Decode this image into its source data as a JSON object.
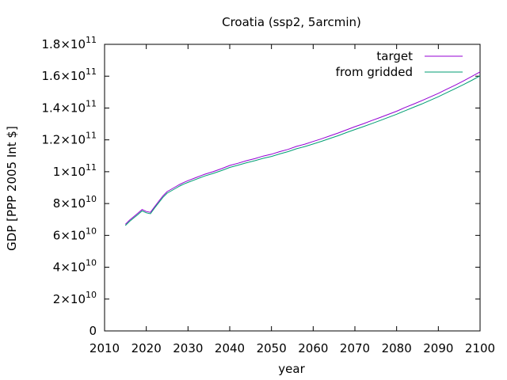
{
  "chart_data": {
    "type": "line",
    "title": "Croatia (ssp2, 5arcmin)",
    "xlabel": "year",
    "ylabel": "GDP [PPP 2005 Int $]",
    "xlim": [
      2010,
      2100
    ],
    "ylim": [
      0,
      180000000000
    ],
    "x_ticks": [
      {
        "value": 2010,
        "label": "2010"
      },
      {
        "value": 2020,
        "label": "2020"
      },
      {
        "value": 2030,
        "label": "2030"
      },
      {
        "value": 2040,
        "label": "2040"
      },
      {
        "value": 2050,
        "label": "2050"
      },
      {
        "value": 2060,
        "label": "2060"
      },
      {
        "value": 2070,
        "label": "2070"
      },
      {
        "value": 2080,
        "label": "2080"
      },
      {
        "value": 2090,
        "label": "2090"
      },
      {
        "value": 2100,
        "label": "2100"
      }
    ],
    "y_ticks": [
      {
        "value": 0,
        "mantissa": "0",
        "exponent": ""
      },
      {
        "value": 20000000000,
        "mantissa": "2×10",
        "exponent": "10"
      },
      {
        "value": 40000000000,
        "mantissa": "4×10",
        "exponent": "10"
      },
      {
        "value": 60000000000,
        "mantissa": "6×10",
        "exponent": "10"
      },
      {
        "value": 80000000000,
        "mantissa": "8×10",
        "exponent": "10"
      },
      {
        "value": 100000000000,
        "mantissa": "1×10",
        "exponent": "11"
      },
      {
        "value": 120000000000,
        "mantissa": "1.2×10",
        "exponent": "11"
      },
      {
        "value": 140000000000,
        "mantissa": "1.4×10",
        "exponent": "11"
      },
      {
        "value": 160000000000,
        "mantissa": "1.6×10",
        "exponent": "11"
      },
      {
        "value": 180000000000,
        "mantissa": "1.8×10",
        "exponent": "11"
      }
    ],
    "grid": false,
    "legend_position": "top-right",
    "x": [
      2015,
      2016,
      2017,
      2018,
      2019,
      2020,
      2021,
      2022,
      2023,
      2024,
      2025,
      2026,
      2027,
      2028,
      2029,
      2030,
      2032,
      2034,
      2036,
      2038,
      2040,
      2042,
      2044,
      2046,
      2048,
      2050,
      2052,
      2054,
      2056,
      2058,
      2060,
      2062,
      2064,
      2066,
      2068,
      2070,
      2072,
      2074,
      2076,
      2078,
      2080,
      2082,
      2084,
      2086,
      2088,
      2090,
      2092,
      2094,
      2096,
      2098,
      2100
    ],
    "series": [
      {
        "name": "target",
        "color": "#9400d3",
        "values": [
          67.0,
          69.6,
          71.8,
          74.0,
          76.3,
          75.0,
          74.5,
          78.0,
          81.5,
          84.8,
          87.5,
          89.0,
          90.5,
          92.0,
          93.3,
          94.4,
          96.4,
          98.4,
          100.0,
          101.9,
          103.9,
          105.3,
          106.9,
          108.2,
          109.8,
          111.0,
          112.6,
          114.0,
          115.9,
          117.3,
          119.0,
          120.7,
          122.5,
          124.3,
          126.3,
          128.3,
          130.1,
          132.1,
          134.0,
          136.0,
          138.0,
          140.3,
          142.4,
          144.6,
          146.9,
          149.2,
          151.8,
          154.3,
          157.0,
          159.8,
          162.7
        ]
      },
      {
        "name": "from gridded",
        "color": "#009e73",
        "values": [
          66.2,
          68.8,
          71.0,
          73.1,
          75.4,
          74.2,
          73.6,
          77.2,
          80.6,
          83.9,
          86.5,
          88.0,
          89.5,
          91.0,
          92.3,
          93.3,
          95.3,
          97.3,
          98.9,
          100.7,
          102.7,
          104.1,
          105.6,
          106.9,
          108.4,
          109.6,
          111.2,
          112.6,
          114.4,
          115.8,
          117.4,
          119.1,
          120.9,
          122.6,
          124.6,
          126.5,
          128.3,
          130.2,
          132.1,
          134.1,
          136.1,
          138.3,
          140.4,
          142.5,
          144.8,
          147.1,
          149.6,
          152.1,
          154.7,
          157.4,
          160.2
        ]
      }
    ],
    "values_unit_multiplier": 1000000000
  }
}
